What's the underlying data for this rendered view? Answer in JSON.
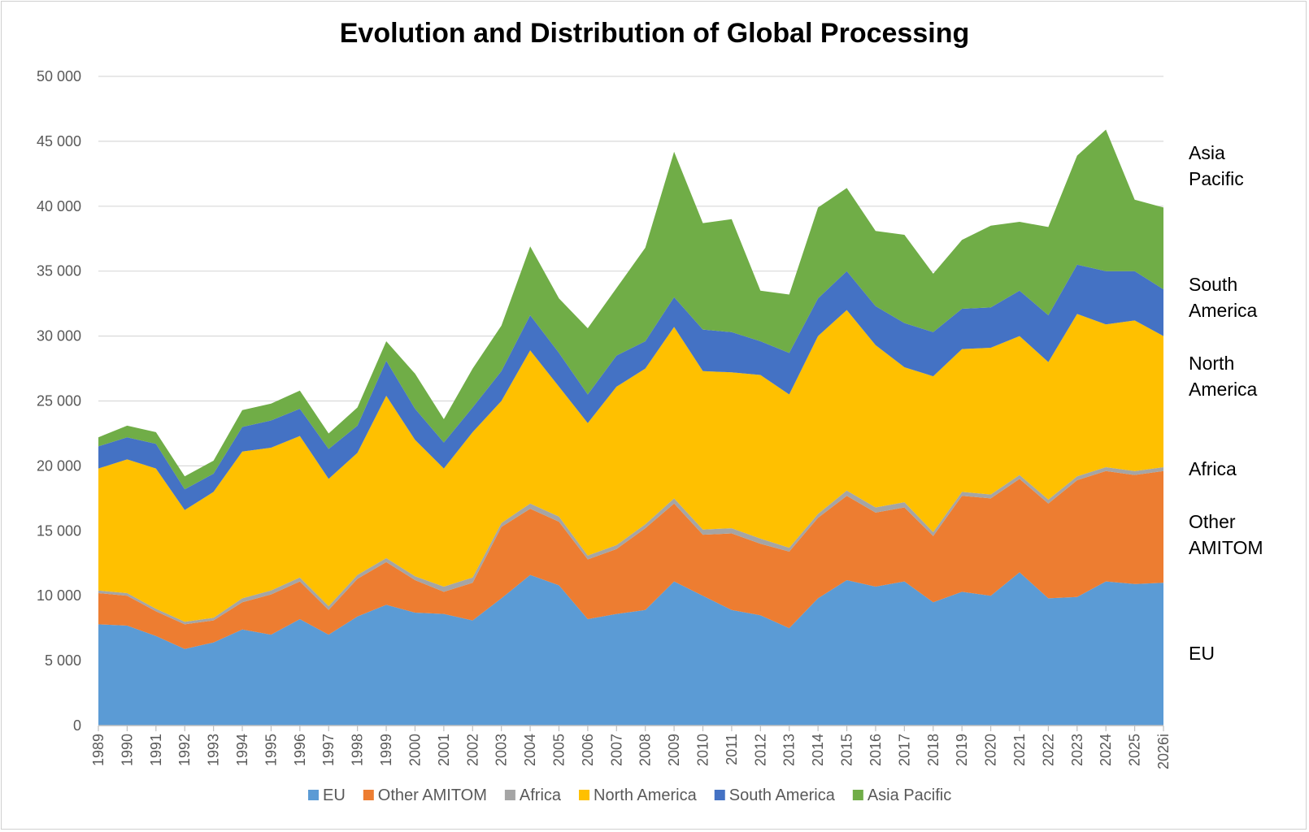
{
  "chart_data": {
    "type": "area",
    "stacked": true,
    "title": "Evolution and Distribution of Global Processing",
    "xlabel": "",
    "ylabel": "",
    "ylim": [
      0,
      50000
    ],
    "yticks": [
      0,
      5000,
      10000,
      15000,
      20000,
      25000,
      30000,
      35000,
      40000,
      45000,
      50000
    ],
    "ytick_labels": [
      "0",
      "5 000",
      "10 000",
      "15 000",
      "20 000",
      "25 000",
      "30 000",
      "35 000",
      "40 000",
      "45 000",
      "50 000"
    ],
    "grid": true,
    "legend_position": "bottom",
    "categories": [
      "1989",
      "1990",
      "1991",
      "1992",
      "1993",
      "1994",
      "1995",
      "1996",
      "1997",
      "1998",
      "1999",
      "2000",
      "2001",
      "2002",
      "2003",
      "2004",
      "2005",
      "2006",
      "2007",
      "2008",
      "2009",
      "2010",
      "2011",
      "2012",
      "2013",
      "2014",
      "2015",
      "2016",
      "2017",
      "2018",
      "2019",
      "2020",
      "2021",
      "2022",
      "2023",
      "2024",
      "2025",
      "2026i"
    ],
    "series": [
      {
        "name": "EU",
        "color": "#5B9BD5",
        "values": [
          7800,
          7700,
          6900,
          5900,
          6400,
          7400,
          7000,
          8200,
          7000,
          8400,
          9300,
          8700,
          8600,
          8100,
          9800,
          11600,
          10800,
          8200,
          8600,
          8900,
          11100,
          10000,
          8900,
          8500,
          7500,
          9800,
          11200,
          10700,
          11100,
          9500,
          10300,
          10000,
          11800,
          9800,
          9900,
          11100,
          10900,
          11000
        ]
      },
      {
        "name": "Other AMITOM",
        "color": "#ED7D31",
        "values": [
          2400,
          2300,
          1900,
          1900,
          1700,
          2100,
          3100,
          2900,
          1900,
          2900,
          3300,
          2500,
          1700,
          2900,
          5500,
          5100,
          4900,
          4600,
          5000,
          6300,
          6000,
          4700,
          5900,
          5500,
          5900,
          6200,
          6500,
          5700,
          5700,
          5100,
          7400,
          7500,
          7200,
          7300,
          9000,
          8500,
          8400,
          8600
        ]
      },
      {
        "name": "Africa",
        "color": "#A5A5A5",
        "values": [
          200,
          200,
          200,
          200,
          200,
          300,
          300,
          300,
          300,
          300,
          300,
          300,
          400,
          400,
          300,
          400,
          400,
          300,
          300,
          300,
          400,
          400,
          400,
          400,
          300,
          300,
          400,
          400,
          400,
          300,
          300,
          300,
          300,
          300,
          300,
          300,
          300,
          300
        ]
      },
      {
        "name": "North America",
        "color": "#FFC000",
        "values": [
          9400,
          10300,
          10800,
          8600,
          9700,
          11300,
          11000,
          10900,
          9800,
          9400,
          12500,
          10500,
          9100,
          11200,
          9400,
          11800,
          10000,
          10200,
          12200,
          12000,
          13200,
          12200,
          12000,
          12600,
          11800,
          13700,
          13900,
          12500,
          10400,
          12000,
          11000,
          11300,
          10700,
          10600,
          12500,
          11000,
          11600,
          10100
        ]
      },
      {
        "name": "South America",
        "color": "#4472C4",
        "values": [
          1700,
          1700,
          1900,
          1600,
          1400,
          1900,
          2100,
          2100,
          2300,
          2100,
          2700,
          2400,
          2000,
          1900,
          2300,
          2700,
          2600,
          2200,
          2400,
          2100,
          2300,
          3200,
          3100,
          2600,
          3200,
          2900,
          3000,
          3000,
          3400,
          3400,
          3100,
          3100,
          3500,
          3600,
          3800,
          4100,
          3800,
          3600
        ]
      },
      {
        "name": "Asia Pacific",
        "color": "#70AD47",
        "values": [
          700,
          900,
          900,
          1000,
          1000,
          1300,
          1300,
          1400,
          1200,
          1400,
          1500,
          2700,
          1800,
          3000,
          3500,
          5300,
          4200,
          5100,
          5200,
          7200,
          11200,
          8200,
          8700,
          3900,
          4500,
          7000,
          6400,
          5800,
          6800,
          4500,
          5300,
          6300,
          5300,
          6800,
          8400,
          10900,
          5500,
          6300
        ]
      }
    ],
    "side_labels": [
      {
        "lines": [
          "Asia",
          "Pacific"
        ]
      },
      {
        "lines": [
          "South",
          "America"
        ]
      },
      {
        "lines": [
          "North",
          "America"
        ]
      },
      {
        "lines": [
          "Africa"
        ]
      },
      {
        "lines": [
          "Other",
          "AMITOM"
        ]
      },
      {
        "lines": [
          "EU"
        ]
      }
    ]
  }
}
